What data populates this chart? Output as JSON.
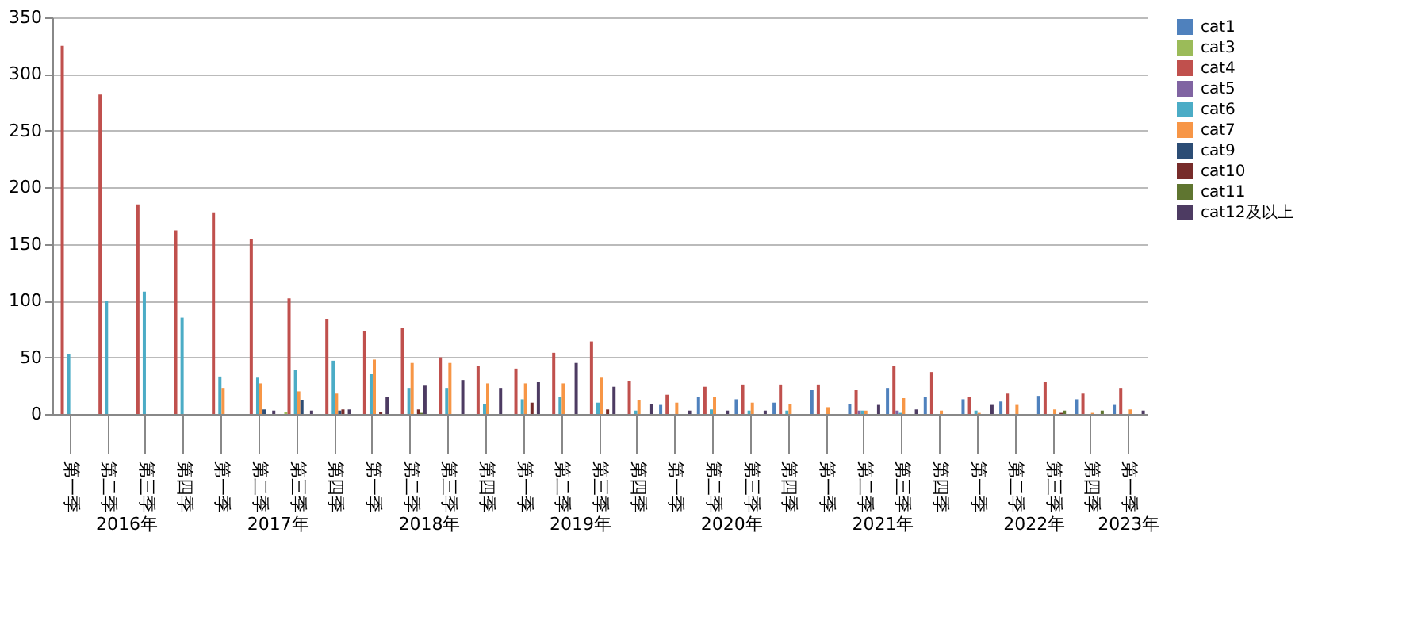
{
  "chart_data": {
    "type": "bar",
    "categories": [
      "第一季",
      "第二季",
      "第三季",
      "第四季",
      "第一季",
      "第二季",
      "第三季",
      "第四季",
      "第一季",
      "第二季",
      "第三季",
      "第四季",
      "第一季",
      "第二季",
      "第三季",
      "第四季",
      "第一季",
      "第二季",
      "第三季",
      "第四季",
      "第一季",
      "第二季",
      "第三季",
      "第四季",
      "第一季",
      "第二季",
      "第三季",
      "第四季",
      "第一季"
    ],
    "annotations": [
      "2016年",
      "2017年",
      "2018年",
      "2019年",
      "2020年",
      "2021年",
      "2022年",
      "2023年"
    ],
    "ylim": [
      0,
      350
    ],
    "yticks": [
      0,
      50,
      100,
      150,
      200,
      250,
      300,
      350
    ],
    "grid": "y",
    "legend": "right",
    "series": [
      {
        "name": "cat1",
        "color": "#4f81bd",
        "values": [
          0,
          0,
          0,
          0,
          0,
          0,
          0,
          0,
          0,
          0,
          0,
          0,
          0,
          0,
          0,
          0,
          8,
          15,
          13,
          10,
          21,
          9,
          23,
          15,
          13,
          11,
          16,
          13,
          8
        ]
      },
      {
        "name": "cat3",
        "color": "#9bbb59",
        "values": [
          0,
          0,
          0,
          0,
          0,
          0,
          2,
          0,
          0,
          0,
          0,
          0,
          0,
          0,
          0,
          0,
          0,
          0,
          0,
          0,
          0,
          0,
          0,
          0,
          0,
          0,
          0,
          0,
          0
        ]
      },
      {
        "name": "cat4",
        "color": "#c0504d",
        "values": [
          325,
          282,
          185,
          162,
          178,
          154,
          102,
          84,
          73,
          76,
          50,
          42,
          40,
          54,
          64,
          29,
          17,
          24,
          26,
          26,
          26,
          21,
          42,
          37,
          15,
          18,
          28,
          18,
          23
        ]
      },
      {
        "name": "cat5",
        "color": "#8064a2",
        "values": [
          0,
          0,
          0,
          0,
          0,
          0,
          0,
          0,
          0,
          0,
          0,
          0,
          0,
          0,
          0,
          0,
          0,
          0,
          0,
          0,
          0,
          3,
          3,
          0,
          0,
          0,
          null,
          0,
          0
        ]
      },
      {
        "name": "cat6",
        "color": "#4bacc6",
        "values": [
          53,
          100,
          108,
          85,
          33,
          32,
          39,
          47,
          35,
          23,
          23,
          9,
          13,
          15,
          10,
          3,
          0,
          4,
          3,
          3,
          0,
          3,
          1,
          0,
          3,
          0,
          0,
          0,
          0
        ]
      },
      {
        "name": "cat7",
        "color": "#f79646",
        "values": [
          0,
          0,
          0,
          0,
          23,
          27,
          20,
          18,
          48,
          45,
          45,
          27,
          27,
          27,
          32,
          12,
          10,
          15,
          10,
          9,
          6,
          3,
          14,
          3,
          1,
          8,
          4,
          1,
          4
        ]
      },
      {
        "name": "cat9",
        "color": "#2c4d75",
        "values": [
          0,
          0,
          0,
          0,
          0,
          4,
          12,
          3,
          0,
          0,
          0,
          0,
          0,
          0,
          0,
          0,
          0,
          0,
          0,
          0,
          0,
          0,
          0,
          0,
          0,
          0,
          0,
          0,
          0
        ]
      },
      {
        "name": "cat10",
        "color": "#772c2a",
        "values": [
          0,
          0,
          0,
          0,
          0,
          0,
          0,
          4,
          2,
          4,
          0,
          0,
          10,
          0,
          4,
          0,
          0,
          0,
          0,
          0,
          0,
          0,
          0,
          0,
          0,
          0,
          1,
          0,
          0
        ]
      },
      {
        "name": "cat11",
        "color": "#5f7530",
        "values": [
          0,
          0,
          0,
          0,
          0,
          0,
          0,
          0,
          0,
          1,
          0,
          0,
          0,
          0,
          0,
          0,
          0,
          0,
          0,
          0,
          0,
          0,
          0,
          0,
          0,
          0,
          3,
          3,
          0
        ]
      },
      {
        "name": "cat12及以上",
        "color": "#4d3b62",
        "values": [
          0,
          0,
          0,
          0,
          0,
          3,
          3,
          4,
          15,
          25,
          30,
          23,
          28,
          45,
          24,
          9,
          3,
          3,
          3,
          0,
          0,
          8,
          4,
          0,
          8,
          0,
          0,
          0,
          3
        ]
      }
    ]
  }
}
